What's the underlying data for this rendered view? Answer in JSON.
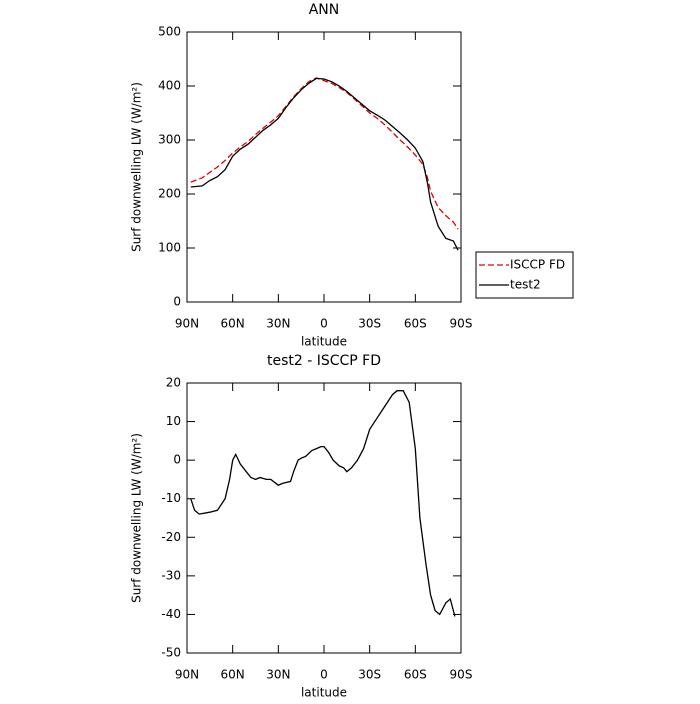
{
  "chart_data": [
    {
      "type": "line",
      "title": "ANN",
      "x_label": "latitude",
      "y_label": "Surf downwelling LW (W/m²)",
      "xlim": [
        90,
        -90
      ],
      "xticks": [
        {
          "value": 90,
          "label": "90N"
        },
        {
          "value": 60,
          "label": "60N"
        },
        {
          "value": 30,
          "label": "30N"
        },
        0,
        {
          "value": -30,
          "label": "30S"
        },
        {
          "value": -60,
          "label": "60S"
        },
        {
          "value": -90,
          "label": "90S"
        }
      ],
      "ylim": [
        0,
        500
      ],
      "yticks": [
        0,
        100,
        200,
        300,
        400,
        500
      ],
      "legend": "right",
      "x": [
        87.5,
        80,
        75,
        70,
        65,
        60,
        55,
        50,
        45,
        40,
        35,
        30,
        25,
        20,
        15,
        10,
        5,
        0,
        -5,
        -10,
        -15,
        -20,
        -25,
        -30,
        -35,
        -40,
        -45,
        -50,
        -55,
        -60,
        -65,
        -68,
        -70,
        -75,
        -80,
        -85,
        -88
      ],
      "series": [
        {
          "name": "ISCCP FD",
          "color": "#e00000",
          "style": "dashed",
          "values": [
            222,
            230,
            240,
            250,
            262,
            276,
            287,
            297,
            310,
            322,
            333,
            345,
            362,
            380,
            395,
            408,
            415,
            410,
            405,
            397,
            388,
            376,
            363,
            350,
            340,
            328,
            314,
            300,
            287,
            272,
            255,
            230,
            205,
            175,
            160,
            148,
            135
          ]
        },
        {
          "name": "test2",
          "color": "#000000",
          "style": "solid",
          "values": [
            213,
            215,
            225,
            232,
            245,
            270,
            283,
            292,
            305,
            318,
            328,
            340,
            360,
            378,
            393,
            405,
            414,
            413,
            408,
            400,
            390,
            378,
            366,
            354,
            346,
            337,
            325,
            313,
            300,
            285,
            260,
            220,
            185,
            140,
            118,
            113,
            96
          ]
        }
      ]
    },
    {
      "type": "line",
      "title": "test2 - ISCCP FD",
      "x_label": "latitude",
      "y_label": "Surf downwelling LW (W/m²)",
      "xlim": [
        90,
        -90
      ],
      "xticks": [
        {
          "value": 90,
          "label": "90N"
        },
        {
          "value": 60,
          "label": "60N"
        },
        {
          "value": 30,
          "label": "30N"
        },
        0,
        {
          "value": -30,
          "label": "30S"
        },
        {
          "value": -60,
          "label": "60S"
        },
        {
          "value": -90,
          "label": "90S"
        }
      ],
      "ylim": [
        -50,
        20
      ],
      "yticks": [
        -50,
        -40,
        -30,
        -20,
        -10,
        0,
        10,
        20
      ],
      "color": "#000000",
      "x": [
        87.5,
        85,
        82,
        75,
        70,
        65,
        62,
        60,
        58,
        55,
        52,
        48,
        45,
        42,
        38,
        35,
        30,
        27,
        22,
        20,
        17,
        15,
        12,
        8,
        5,
        2,
        0,
        -3,
        -6,
        -10,
        -13,
        -15,
        -18,
        -22,
        -26,
        -30,
        -35,
        -40,
        -45,
        -48,
        -52,
        -56,
        -60,
        -63,
        -67,
        -70,
        -73,
        -76,
        -80,
        -83,
        -86
      ],
      "values": [
        -10,
        -13,
        -14,
        -13.5,
        -13,
        -10,
        -5,
        0,
        1.5,
        -1,
        -2.5,
        -4.5,
        -5,
        -4.5,
        -5,
        -5,
        -6.5,
        -6,
        -5.5,
        -3,
        0,
        0.5,
        1,
        2.5,
        3,
        3.5,
        3.5,
        2,
        0,
        -1.5,
        -2,
        -3,
        -2,
        0,
        3,
        8,
        11,
        14,
        17,
        18,
        18,
        15,
        3,
        -15,
        -27,
        -35,
        -39,
        -40,
        -37,
        -36,
        -40.5
      ]
    }
  ]
}
